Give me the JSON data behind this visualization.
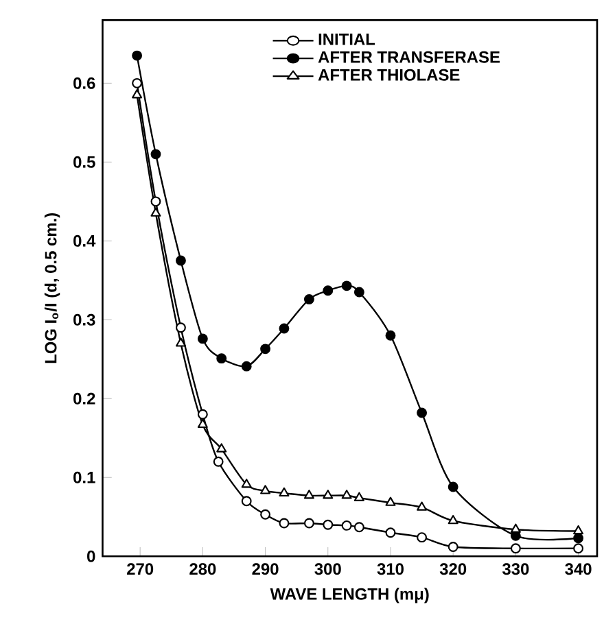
{
  "chart_data": {
    "type": "line",
    "xlabel": "WAVE LENGTH (mμ)",
    "ylabel": "LOG I$_{o}$/I (d, 0.5 cm.)",
    "xlim": [
      264,
      343
    ],
    "ylim": [
      0,
      0.68
    ],
    "xticks": [
      270,
      280,
      290,
      300,
      310,
      320,
      330,
      340
    ],
    "yticks": [
      0,
      0.1,
      0.2,
      0.3,
      0.4,
      0.5,
      0.6
    ],
    "grid": false,
    "legend": "top",
    "line_style": "solid",
    "series": [
      {
        "name": "INITIAL",
        "color": "#000000",
        "marker": "circle",
        "x": [
          269.5,
          272.5,
          276.5,
          280,
          282.5,
          287,
          290,
          293,
          297,
          300,
          303,
          305,
          310,
          315,
          320,
          330,
          340
        ],
        "values": [
          0.6,
          0.45,
          0.29,
          0.18,
          0.12,
          0.07,
          0.053,
          0.042,
          0.042,
          0.04,
          0.039,
          0.037,
          0.03,
          0.024,
          0.012,
          0.01,
          0.01
        ]
      },
      {
        "name": "AFTER TRANSFERASE",
        "color": "#000000",
        "marker": "circle",
        "x": [
          269.5,
          272.5,
          276.5,
          280,
          283,
          287,
          290,
          293,
          297,
          300,
          303,
          305,
          310,
          315,
          320,
          330,
          340
        ],
        "values": [
          0.635,
          0.51,
          0.375,
          0.276,
          0.251,
          0.241,
          0.263,
          0.289,
          0.326,
          0.337,
          0.343,
          0.335,
          0.28,
          0.182,
          0.088,
          0.026,
          0.023
        ]
      },
      {
        "name": "AFTER THIOLASE",
        "color": "#000000",
        "marker": "triangle",
        "x": [
          269.5,
          272.5,
          276.5,
          280,
          283,
          287,
          290,
          293,
          297,
          300,
          303,
          305,
          310,
          315,
          320,
          330,
          340
        ],
        "values": [
          0.585,
          0.435,
          0.27,
          0.167,
          0.136,
          0.091,
          0.083,
          0.08,
          0.077,
          0.077,
          0.077,
          0.074,
          0.068,
          0.062,
          0.045,
          0.034,
          0.032
        ]
      }
    ]
  }
}
